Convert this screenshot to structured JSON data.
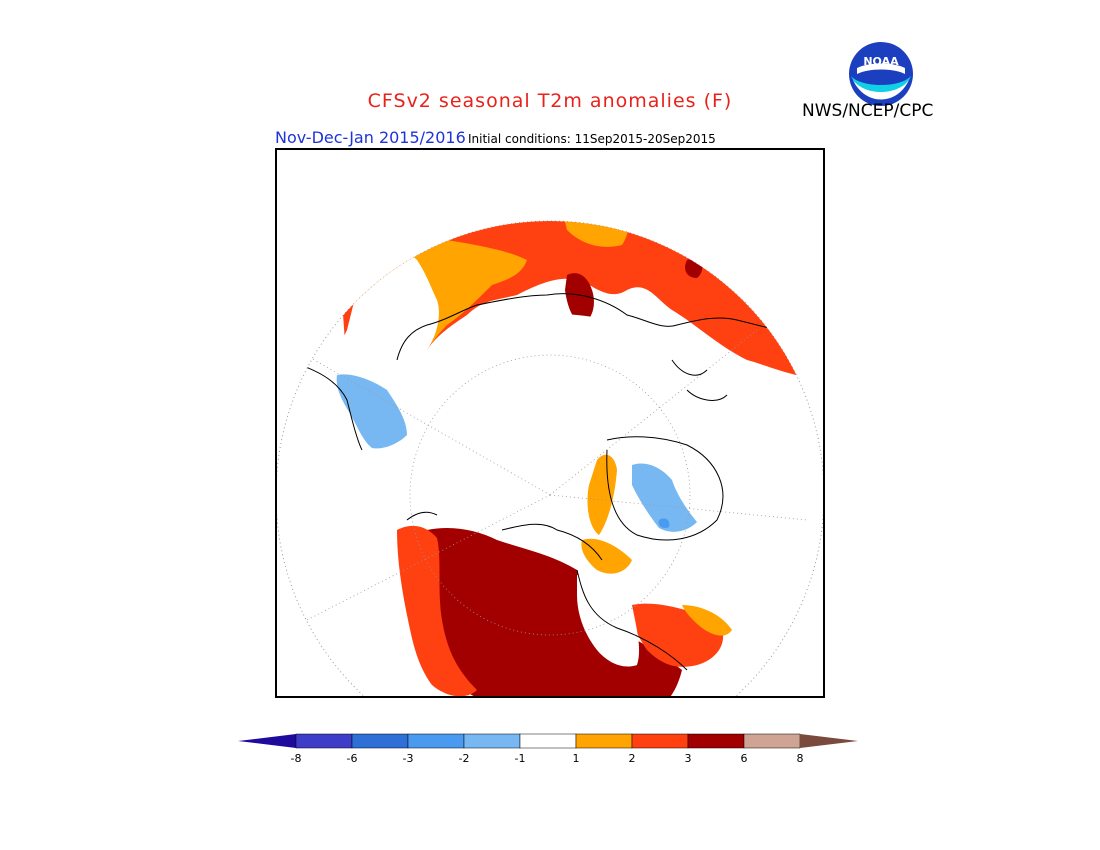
{
  "header": {
    "title": "CFSv2 seasonal T2m anomalies (F)",
    "agency": "NWS/NCEP/CPC",
    "logo_text": "NOAA",
    "period": "Nov-Dec-Jan 2015/2016",
    "initial_conditions": "Initial conditions: 11Sep2015-20Sep2015"
  },
  "legend": {
    "units": "F",
    "labels": [
      "-8",
      "-6",
      "-3",
      "-2",
      "-1",
      "1",
      "2",
      "3",
      "6",
      "8"
    ],
    "bins": [
      {
        "range": "< -8",
        "color": "#1e0a9c"
      },
      {
        "range": "-8 to -6",
        "color": "#3d3dc8"
      },
      {
        "range": "-6 to -3",
        "color": "#2f6fd6"
      },
      {
        "range": "-3 to -2",
        "color": "#4a9af0"
      },
      {
        "range": "-2 to -1",
        "color": "#78b8f2"
      },
      {
        "range": "-1 to 1",
        "color": "#ffffff"
      },
      {
        "range": "1 to 2",
        "color": "#ffa400"
      },
      {
        "range": "2 to 3",
        "color": "#ff4010"
      },
      {
        "range": "3 to 6",
        "color": "#a20000"
      },
      {
        "range": "6 to 8",
        "color": "#cfa494"
      },
      {
        "range": "> 8",
        "color": "#7a4a3c"
      }
    ]
  },
  "map": {
    "projection": "north polar stereographic",
    "colors": {
      "near_normal": "#ffffff",
      "above_1_2": "#ffa400",
      "above_2_3": "#ff4010",
      "above_3_6": "#a20000",
      "below_1_2": "#78b8f2",
      "below_2_3": "#4a9af0",
      "coastline": "#000000",
      "gridline": "#888888"
    }
  }
}
